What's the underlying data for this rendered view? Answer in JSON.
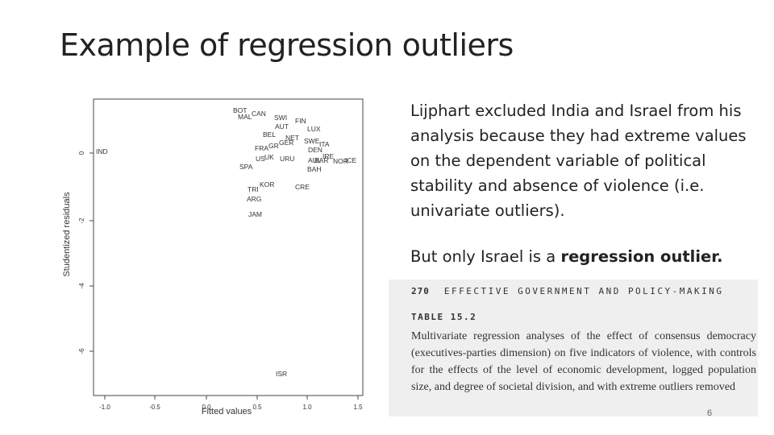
{
  "slide": {
    "title": "Example of regression outliers",
    "page_number": "6"
  },
  "plot": {
    "xlabel": "Fitted values",
    "ylabel": "Studentized residuals",
    "x_ticks": [
      "-1.0",
      "-0.5",
      "0.0",
      "0.5",
      "1.0",
      "1.5"
    ],
    "y_ticks": [
      "0",
      "-2",
      "-4",
      "-6"
    ],
    "points": [
      {
        "label": "BOT"
      },
      {
        "label": "MAL"
      },
      {
        "label": "CAN"
      },
      {
        "label": "SWI"
      },
      {
        "label": "FIN"
      },
      {
        "label": "AUT"
      },
      {
        "label": "LUX"
      },
      {
        "label": "BEL"
      },
      {
        "label": "NET"
      },
      {
        "label": "GER"
      },
      {
        "label": "SWE"
      },
      {
        "label": "ITA"
      },
      {
        "label": "FRA"
      },
      {
        "label": "GR"
      },
      {
        "label": "DEN"
      },
      {
        "label": "IND"
      },
      {
        "label": "US"
      },
      {
        "label": "UK"
      },
      {
        "label": "URU"
      },
      {
        "label": "AUL"
      },
      {
        "label": "NOR"
      },
      {
        "label": "IRE"
      },
      {
        "label": "ICE"
      },
      {
        "label": "BAR"
      },
      {
        "label": "BAH"
      },
      {
        "label": "SPA"
      },
      {
        "label": "KOR"
      },
      {
        "label": "TRI"
      },
      {
        "label": "CRE"
      },
      {
        "label": "ARG"
      },
      {
        "label": "JAM"
      },
      {
        "label": "ISR"
      }
    ]
  },
  "text": {
    "para1": "Lijphart excluded India and Israel from his analysis because they had extreme values on the dependent variable of political stability and absence of violence (i.e. univariate outliers).",
    "para2_prefix": "But only Israel is a ",
    "para2_bold": "regression outlier."
  },
  "scan": {
    "page": "270",
    "header": "EFFECTIVE GOVERNMENT AND POLICY-MAKING",
    "table_label": "TABLE 15.2",
    "caption": "Multivariate regression analyses of the effect of consensus democracy (executives-parties dimension) on five indicators of violence, with controls for the effects of the level of economic development, logged population size, and degree of societal division, and with extreme outliers removed"
  }
}
